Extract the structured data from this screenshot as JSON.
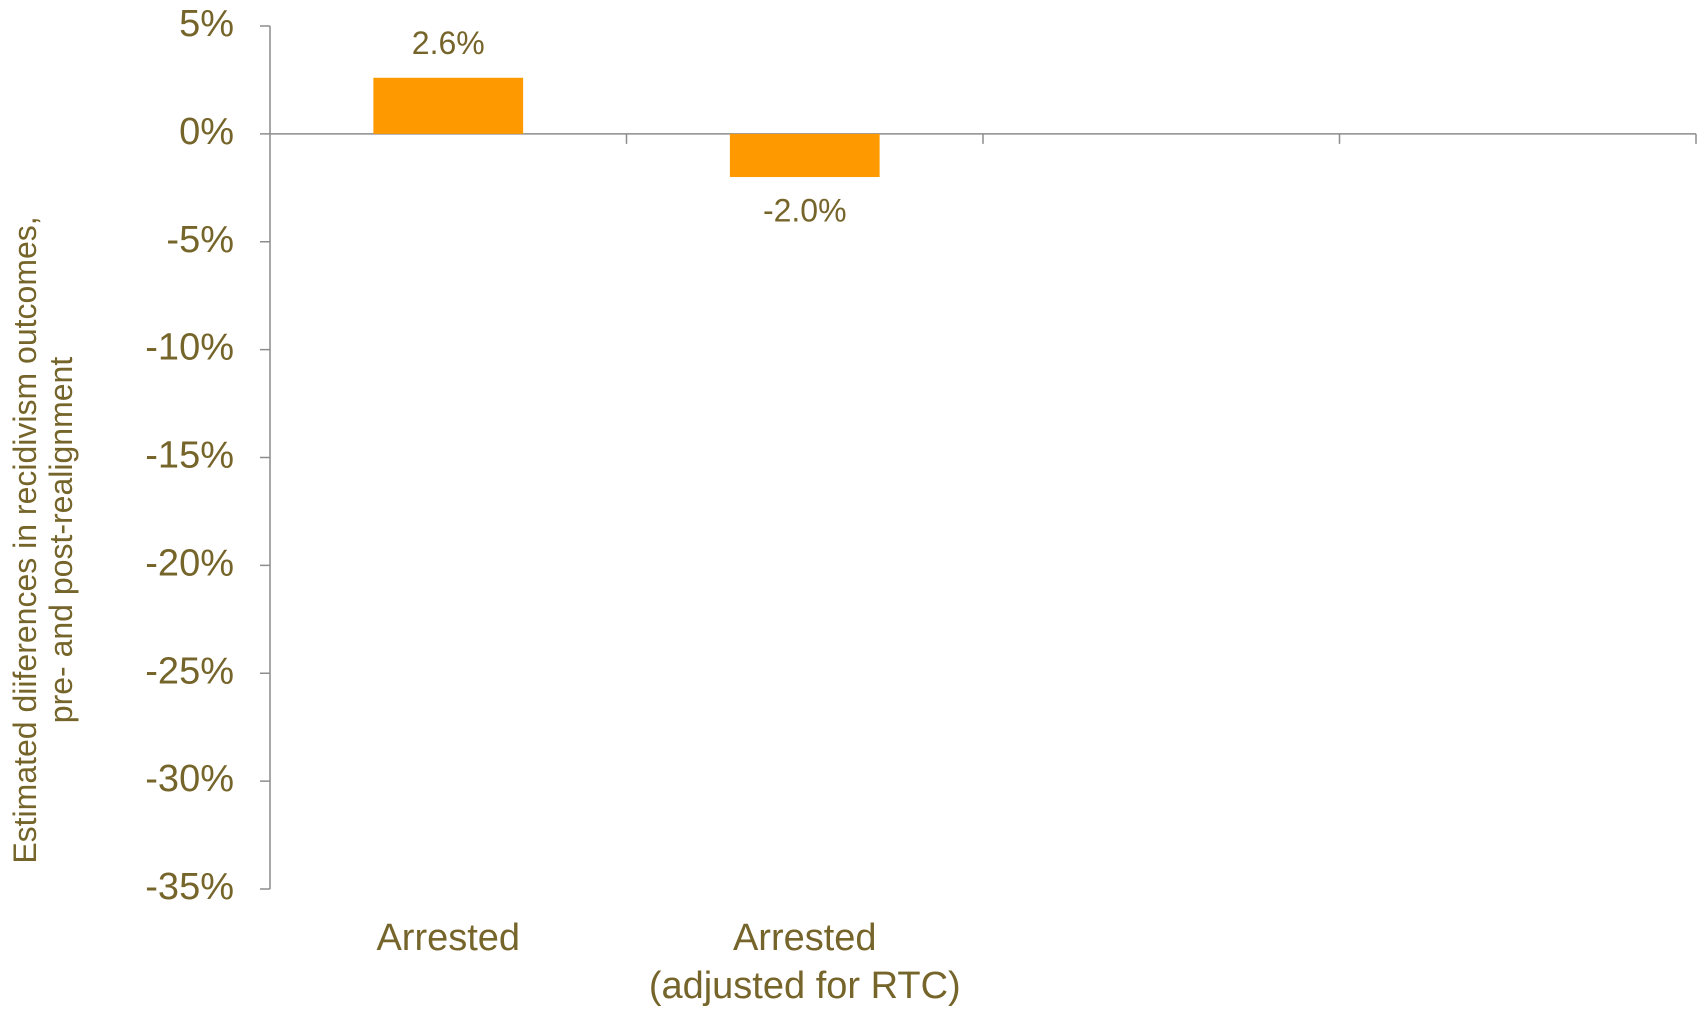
{
  "chart_data": {
    "type": "bar",
    "y_label": "Estimated diiferences in recidivism outcomes,\npre- and post-realignment",
    "categories": [
      "Arrested",
      "Arrested\n(adjusted for RTC)",
      null,
      null
    ],
    "values": [
      2.6,
      -2.0,
      null,
      null
    ],
    "value_labels": [
      "2.6%",
      "-2.0%",
      null,
      null
    ],
    "color": "#ff9900",
    "ylim": [
      -35,
      5
    ],
    "yticks": [
      {
        "value": 5,
        "label": "5%"
      },
      {
        "value": 0,
        "label": "0%"
      },
      {
        "value": -5,
        "label": "-5%"
      },
      {
        "value": -10,
        "label": "-10%"
      },
      {
        "value": -15,
        "label": "-15%"
      },
      {
        "value": -20,
        "label": "-20%"
      },
      {
        "value": -25,
        "label": "-25%"
      },
      {
        "value": -30,
        "label": "-30%"
      },
      {
        "value": -35,
        "label": "-35%"
      }
    ],
    "grid": false
  }
}
